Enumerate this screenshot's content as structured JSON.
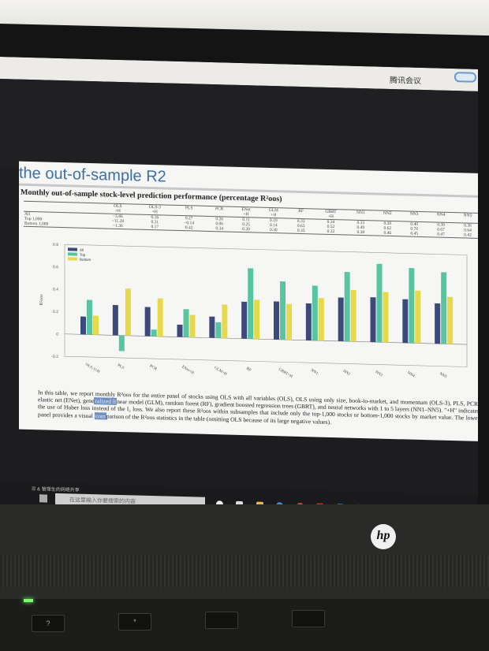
{
  "screen": {
    "app_title": "腾讯会议",
    "taskbar_status": "☰ & 管理生的网络共享",
    "search_placeholder": "在这里输入你要搜索的内容"
  },
  "slide": {
    "title": "the out-of-sample R2",
    "subtitle": "Monthly out-of-sample stock-level prediction performance (percentage R²oos)"
  },
  "table": {
    "header_top": [
      "",
      "OLS",
      "OLS-3",
      "PLS",
      "PCR",
      "ENet",
      "GLM",
      "RF",
      "GBRT",
      "NN1",
      "NN2",
      "NN3",
      "NN4",
      "NN5"
    ],
    "header_bottom": [
      "",
      "+H",
      "+H",
      "",
      "",
      "+H",
      "+H",
      "",
      "+H",
      "",
      "",
      "",
      "",
      ""
    ],
    "rows": [
      {
        "label": "All",
        "values": [
          "−3.46",
          "0.16",
          "0.27",
          "0.26",
          "0.11",
          "0.19",
          "0.33",
          "0.34",
          "0.33",
          "0.39",
          "0.40",
          "0.39",
          "0.36"
        ]
      },
      {
        "label": "Top 1,000",
        "values": [
          "−11.28",
          "0.31",
          "−0.14",
          "0.06",
          "0.25",
          "0.14",
          "0.63",
          "0.52",
          "0.49",
          "0.62",
          "0.70",
          "0.67",
          "0.64"
        ]
      },
      {
        "label": "Bottom 1,000",
        "values": [
          "−1.30",
          "0.17",
          "0.42",
          "0.34",
          "0.20",
          "0.30",
          "0.35",
          "0.32",
          "0.38",
          "0.46",
          "0.45",
          "0.47",
          "0.42"
        ]
      }
    ]
  },
  "chart_data": {
    "type": "bar",
    "categories": [
      "OLS-3+H",
      "PLS",
      "PCR",
      "ENet+H",
      "GLM+H",
      "RF",
      "GBRT+H",
      "NN1",
      "NN2",
      "NN3",
      "NN4",
      "NN5"
    ],
    "series": [
      {
        "name": "All",
        "color": "#3b4a7a",
        "values": [
          0.16,
          0.27,
          0.26,
          0.11,
          0.19,
          0.33,
          0.34,
          0.33,
          0.39,
          0.4,
          0.39,
          0.36
        ]
      },
      {
        "name": "Top",
        "color": "#58c4a0",
        "values": [
          0.31,
          -0.14,
          0.06,
          0.25,
          0.14,
          0.63,
          0.52,
          0.49,
          0.62,
          0.7,
          0.67,
          0.64
        ]
      },
      {
        "name": "Bottom",
        "color": "#e6d94a",
        "values": [
          0.17,
          0.42,
          0.34,
          0.2,
          0.3,
          0.35,
          0.32,
          0.38,
          0.46,
          0.45,
          0.47,
          0.42
        ]
      }
    ],
    "ylim": [
      -0.2,
      0.8
    ],
    "yticks": [
      "-0.2",
      "0",
      "0.2",
      "0.4",
      "0.6",
      "0.8"
    ],
    "ylabel": "R²oos",
    "legend_position": "top-left",
    "grid": false
  },
  "caption": {
    "p1": "In this table, we report monthly R²oos for the entire panel of stocks using OLS with all variables (OLS), OLS using only size, book-to-market, and momentum (OLS-3), PLS, PCR, elastic net (ENet), gene",
    "sel1": "ralized li",
    "p2": "near model (GLM), random forest (RF), gradient boosted regression trees (GBRT), and neural networks with 1 to 5 layers (NN1–NN5). \"+H\" indicates the use of Huber loss instead of the l₂ loss. We also report these R²oos within subsamples that include only the top-1,000 stocks or bottom-1,000 stocks by market value. The lower panel provides a visual ",
    "sel2": "com",
    "p3": "parison of the R²oos statistics in the table (omitting OLS because of its large negative values)."
  },
  "laptop": {
    "brand": "hp",
    "keys": [
      "?",
      "*"
    ]
  }
}
